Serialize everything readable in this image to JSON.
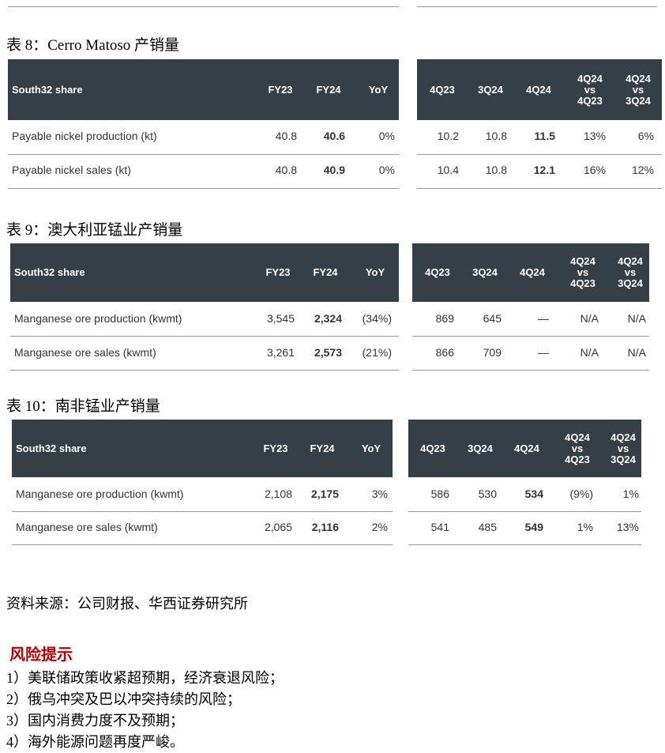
{
  "tables": [
    {
      "caption": "表 8：Cerro Matoso 产销量",
      "header": {
        "label": "South32 share",
        "left": [
          "FY23",
          "FY24",
          "YoY"
        ],
        "right": [
          "4Q23",
          "3Q24",
          "4Q24",
          "4Q24 vs 4Q23",
          "4Q24 vs 3Q24"
        ]
      },
      "rows": [
        {
          "label": "Payable nickel production (kt)",
          "left": [
            "40.8",
            "40.6",
            "0%"
          ],
          "right": [
            "10.2",
            "10.8",
            "11.5",
            "13%",
            "6%"
          ]
        },
        {
          "label": "Payable nickel sales (kt)",
          "left": [
            "40.8",
            "40.9",
            "0%"
          ],
          "right": [
            "10.4",
            "10.8",
            "12.1",
            "16%",
            "12%"
          ]
        }
      ]
    },
    {
      "caption": "表 9：澳大利亚锰业产销量",
      "header": {
        "label": "South32 share",
        "left": [
          "FY23",
          "FY24",
          "YoY"
        ],
        "right": [
          "4Q23",
          "3Q24",
          "4Q24",
          "4Q24 vs 4Q23",
          "4Q24 vs 3Q24"
        ]
      },
      "rows": [
        {
          "label": "Manganese ore production (kwmt)",
          "left": [
            "3,545",
            "2,324",
            "(34%)"
          ],
          "right": [
            "869",
            "645",
            "—",
            "N/A",
            "N/A"
          ]
        },
        {
          "label": "Manganese ore sales (kwmt)",
          "left": [
            "3,261",
            "2,573",
            "(21%)"
          ],
          "right": [
            "866",
            "709",
            "—",
            "N/A",
            "N/A"
          ]
        }
      ]
    },
    {
      "caption": "表 10：南非锰业产销量",
      "header": {
        "label": "South32 share",
        "left": [
          "FY23",
          "FY24",
          "YoY"
        ],
        "right": [
          "4Q23",
          "3Q24",
          "4Q24",
          "4Q24 vs 4Q23",
          "4Q24 vs 3Q24"
        ]
      },
      "rows": [
        {
          "label": "Manganese ore production (kwmt)",
          "left": [
            "2,108",
            "2,175",
            "3%"
          ],
          "right": [
            "586",
            "530",
            "534",
            "(9%)",
            "1%"
          ]
        },
        {
          "label": "Manganese ore sales (kwmt)",
          "left": [
            "2,065",
            "2,116",
            "2%"
          ],
          "right": [
            "541",
            "485",
            "549",
            "1%",
            "13%"
          ]
        }
      ]
    }
  ],
  "source": "资料来源：公司财报、华西证券研究所",
  "risk": {
    "title": "风险提示",
    "items": [
      "1）美联储政策收紧超预期，经济衰退风险；",
      "2）俄乌冲突及巴以冲突持续的风险；",
      "3）国内消费力度不及预期；",
      "4）海外能源问题再度严峻。"
    ]
  }
}
